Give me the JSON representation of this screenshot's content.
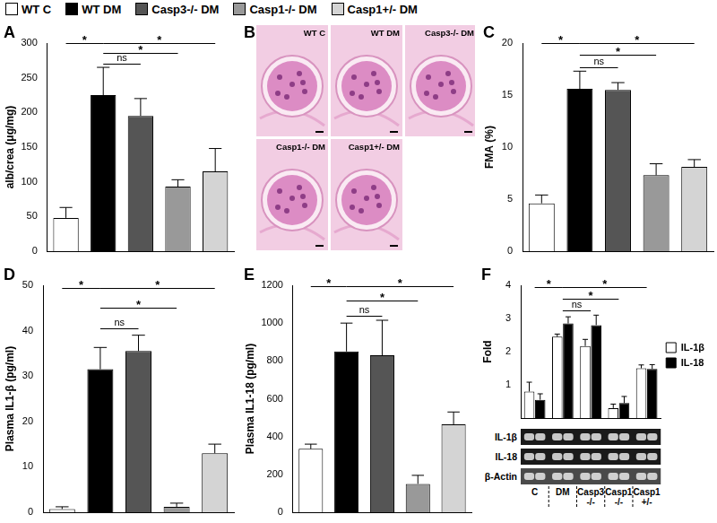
{
  "figure_legend": [
    {
      "name": "WT C",
      "color": "#ffffff"
    },
    {
      "name": "WT DM",
      "color": "#000000"
    },
    {
      "name": "Casp3-/- DM",
      "color": "#555555"
    },
    {
      "name": "Casp1-/- DM",
      "color": "#999999"
    },
    {
      "name": "Casp1+/- DM",
      "color": "#d4d4d4"
    }
  ],
  "chart_data": [
    {
      "panel": "A",
      "type": "bar",
      "y_label": "alb/crea (μg/mg)",
      "categories": [
        null,
        null,
        null,
        null,
        null
      ],
      "values": [
        48,
        225,
        195,
        93,
        115
      ],
      "errors": [
        15,
        40,
        25,
        10,
        33
      ],
      "colors": [
        "#ffffff",
        "#000000",
        "#555555",
        "#999999",
        "#d4d4d4"
      ],
      "ylim": [
        0,
        300
      ],
      "yticks": [
        0,
        50,
        100,
        150,
        200,
        250,
        300
      ],
      "grid": false,
      "tick_labels": "y",
      "annotations": [
        {
          "from": 0,
          "to": 1,
          "y": 300,
          "label": "*"
        },
        {
          "from": 1,
          "to": 2,
          "y": 270,
          "label": "ns"
        },
        {
          "from": 1,
          "to": 3,
          "y": 286,
          "label": "*"
        },
        {
          "from": 1,
          "to": 4,
          "y": 300,
          "label": "*"
        }
      ]
    },
    {
      "panel": "C",
      "type": "bar",
      "y_label": "FMA (%)",
      "categories": [
        null,
        null,
        null,
        null,
        null
      ],
      "values": [
        4.6,
        15.6,
        15.5,
        7.3,
        8.1
      ],
      "errors": [
        0.8,
        1.7,
        0.7,
        1.1,
        0.7
      ],
      "colors": [
        "#ffffff",
        "#000000",
        "#555555",
        "#999999",
        "#d4d4d4"
      ],
      "ylim": [
        0,
        20
      ],
      "yticks": [
        0,
        5,
        10,
        15,
        20
      ],
      "grid": false,
      "tick_labels": "y",
      "annotations": [
        {
          "from": 0,
          "to": 1,
          "y": 20,
          "label": "*"
        },
        {
          "from": 1,
          "to": 2,
          "y": 17.7,
          "label": "ns"
        },
        {
          "from": 1,
          "to": 3,
          "y": 18.9,
          "label": "*"
        },
        {
          "from": 1,
          "to": 4,
          "y": 20,
          "label": "*"
        }
      ]
    },
    {
      "panel": "D",
      "type": "bar",
      "y_label": "Plasma IL1-β (pg/ml)",
      "categories": [
        null,
        null,
        null,
        null,
        null
      ],
      "values": [
        0.7,
        31.5,
        35.5,
        1.2,
        13
      ],
      "errors": [
        0.5,
        4.8,
        3.5,
        0.8,
        2
      ],
      "colors": [
        "#ffffff",
        "#000000",
        "#555555",
        "#999999",
        "#d4d4d4"
      ],
      "ylim": [
        0,
        50
      ],
      "yticks": [
        0,
        10,
        20,
        30,
        40,
        50
      ],
      "grid": false,
      "tick_labels": "y",
      "annotations": [
        {
          "from": 0,
          "to": 1,
          "y": 49.5,
          "label": "*"
        },
        {
          "from": 1,
          "to": 2,
          "y": 40.5,
          "label": "ns"
        },
        {
          "from": 1,
          "to": 3,
          "y": 45,
          "label": "*"
        },
        {
          "from": 1,
          "to": 4,
          "y": 49.5,
          "label": "*"
        }
      ]
    },
    {
      "panel": "E",
      "type": "bar",
      "y_label": "Plasma IL1-18 (pg/ml)",
      "categories": [
        null,
        null,
        null,
        null,
        null
      ],
      "values": [
        335,
        850,
        830,
        150,
        465
      ],
      "errors": [
        25,
        150,
        185,
        45,
        65
      ],
      "colors": [
        "#ffffff",
        "#000000",
        "#555555",
        "#999999",
        "#d4d4d4"
      ],
      "ylim": [
        0,
        1200
      ],
      "yticks": [
        0,
        200,
        400,
        600,
        800,
        1000,
        1200
      ],
      "grid": false,
      "tick_labels": "y",
      "annotations": [
        {
          "from": 0,
          "to": 1,
          "y": 1195,
          "label": "*"
        },
        {
          "from": 1,
          "to": 2,
          "y": 1040,
          "label": "ns"
        },
        {
          "from": 1,
          "to": 3,
          "y": 1120,
          "label": "*"
        },
        {
          "from": 1,
          "to": 4,
          "y": 1195,
          "label": "*"
        }
      ]
    },
    {
      "panel": "F",
      "type": "bar",
      "y_label": "Fold",
      "categories": [
        "C",
        "DM",
        "Casp3 -/-",
        "Casp1 -/-",
        "Casp1 +/-"
      ],
      "series": [
        {
          "name": "IL-1β",
          "color": "#ffffff",
          "values": [
            0.8,
            2.45,
            2.17,
            0.3,
            1.5
          ],
          "errors": [
            0.28,
            0.08,
            0.2,
            0.12,
            0.1
          ]
        },
        {
          "name": "IL-18",
          "color": "#000000",
          "values": [
            0.55,
            2.85,
            2.8,
            0.45,
            1.48
          ],
          "errors": [
            0.18,
            0.2,
            0.3,
            0.2,
            0.13
          ]
        }
      ],
      "ylim": [
        0,
        4
      ],
      "yticks": [
        1,
        2,
        3,
        4
      ],
      "grid": false,
      "tick_labels": "y",
      "legend": "right",
      "annotations": [
        {
          "from": 0,
          "to": 1,
          "y": 3.95,
          "label": "*"
        },
        {
          "from": 1,
          "to": 2,
          "y": 3.25,
          "label": "ns"
        },
        {
          "from": 1,
          "to": 3,
          "y": 3.6,
          "label": "*"
        },
        {
          "from": 1,
          "to": 4,
          "y": 3.95,
          "label": "*"
        }
      ]
    }
  ],
  "micrographs": {
    "panel": "B",
    "labels": [
      "WT C",
      "WT DM",
      "Casp3-/- DM",
      "Casp1-/- DM",
      "Casp1+/- DM"
    ]
  },
  "gel": {
    "panel": "F",
    "rows": [
      "IL-1β",
      "IL-18",
      "β-Actin"
    ]
  }
}
